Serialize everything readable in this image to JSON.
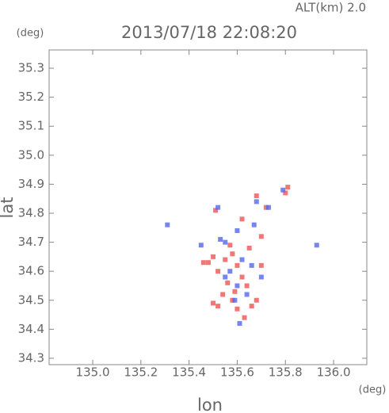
{
  "chart_data": {
    "type": "scatter",
    "title": "2013/07/18 22:08:20",
    "subtitle": "ALT(km) 2.0",
    "x_label": "lon",
    "y_label": "lat",
    "x_unit": "(deg)",
    "y_unit": "(deg)",
    "xlim": [
      134.819,
      136.138
    ],
    "ylim": [
      34.278,
      35.363
    ],
    "xticks": [
      {
        "value": 135.0,
        "label": "135.0"
      },
      135.2,
      135.4,
      135.6,
      135.8,
      {
        "value": 136.0,
        "label": "136.0"
      }
    ],
    "yticks": [
      34.3,
      34.4,
      34.5,
      34.6,
      34.7,
      34.8,
      34.9,
      {
        "value": 35.0,
        "label": "35.0"
      },
      35.1,
      35.2,
      35.3
    ],
    "series": [
      {
        "color": "#ee5555",
        "x": [
          135.5,
          135.48,
          135.52,
          135.55,
          135.58,
          135.6,
          135.62,
          135.56,
          135.54,
          135.58,
          135.5,
          135.52,
          135.6,
          135.66,
          135.68,
          135.63,
          135.7,
          135.65,
          135.62,
          135.7,
          135.68,
          135.8,
          135.81,
          135.72,
          135.51,
          135.57,
          135.46,
          135.64,
          135.59
        ],
        "values": [
          34.65,
          34.63,
          34.6,
          34.64,
          34.66,
          34.62,
          34.58,
          34.56,
          34.52,
          34.5,
          34.49,
          34.48,
          34.47,
          34.48,
          34.5,
          34.44,
          34.62,
          34.68,
          34.78,
          34.72,
          34.86,
          34.87,
          34.89,
          34.82,
          34.81,
          34.69,
          34.63,
          34.55,
          34.53
        ]
      },
      {
        "color": "#5566ee",
        "x": [
          135.53,
          135.55,
          135.57,
          135.62,
          135.66,
          135.7,
          135.6,
          135.55,
          135.68,
          135.73,
          135.79,
          135.93,
          135.31,
          135.45,
          135.61,
          135.64,
          135.6,
          135.67,
          135.52,
          135.59
        ],
        "values": [
          34.71,
          34.7,
          34.6,
          34.64,
          34.62,
          34.58,
          34.55,
          34.58,
          34.84,
          34.82,
          34.88,
          34.69,
          34.76,
          34.69,
          34.42,
          34.52,
          34.74,
          34.76,
          34.82,
          34.5
        ]
      }
    ]
  }
}
